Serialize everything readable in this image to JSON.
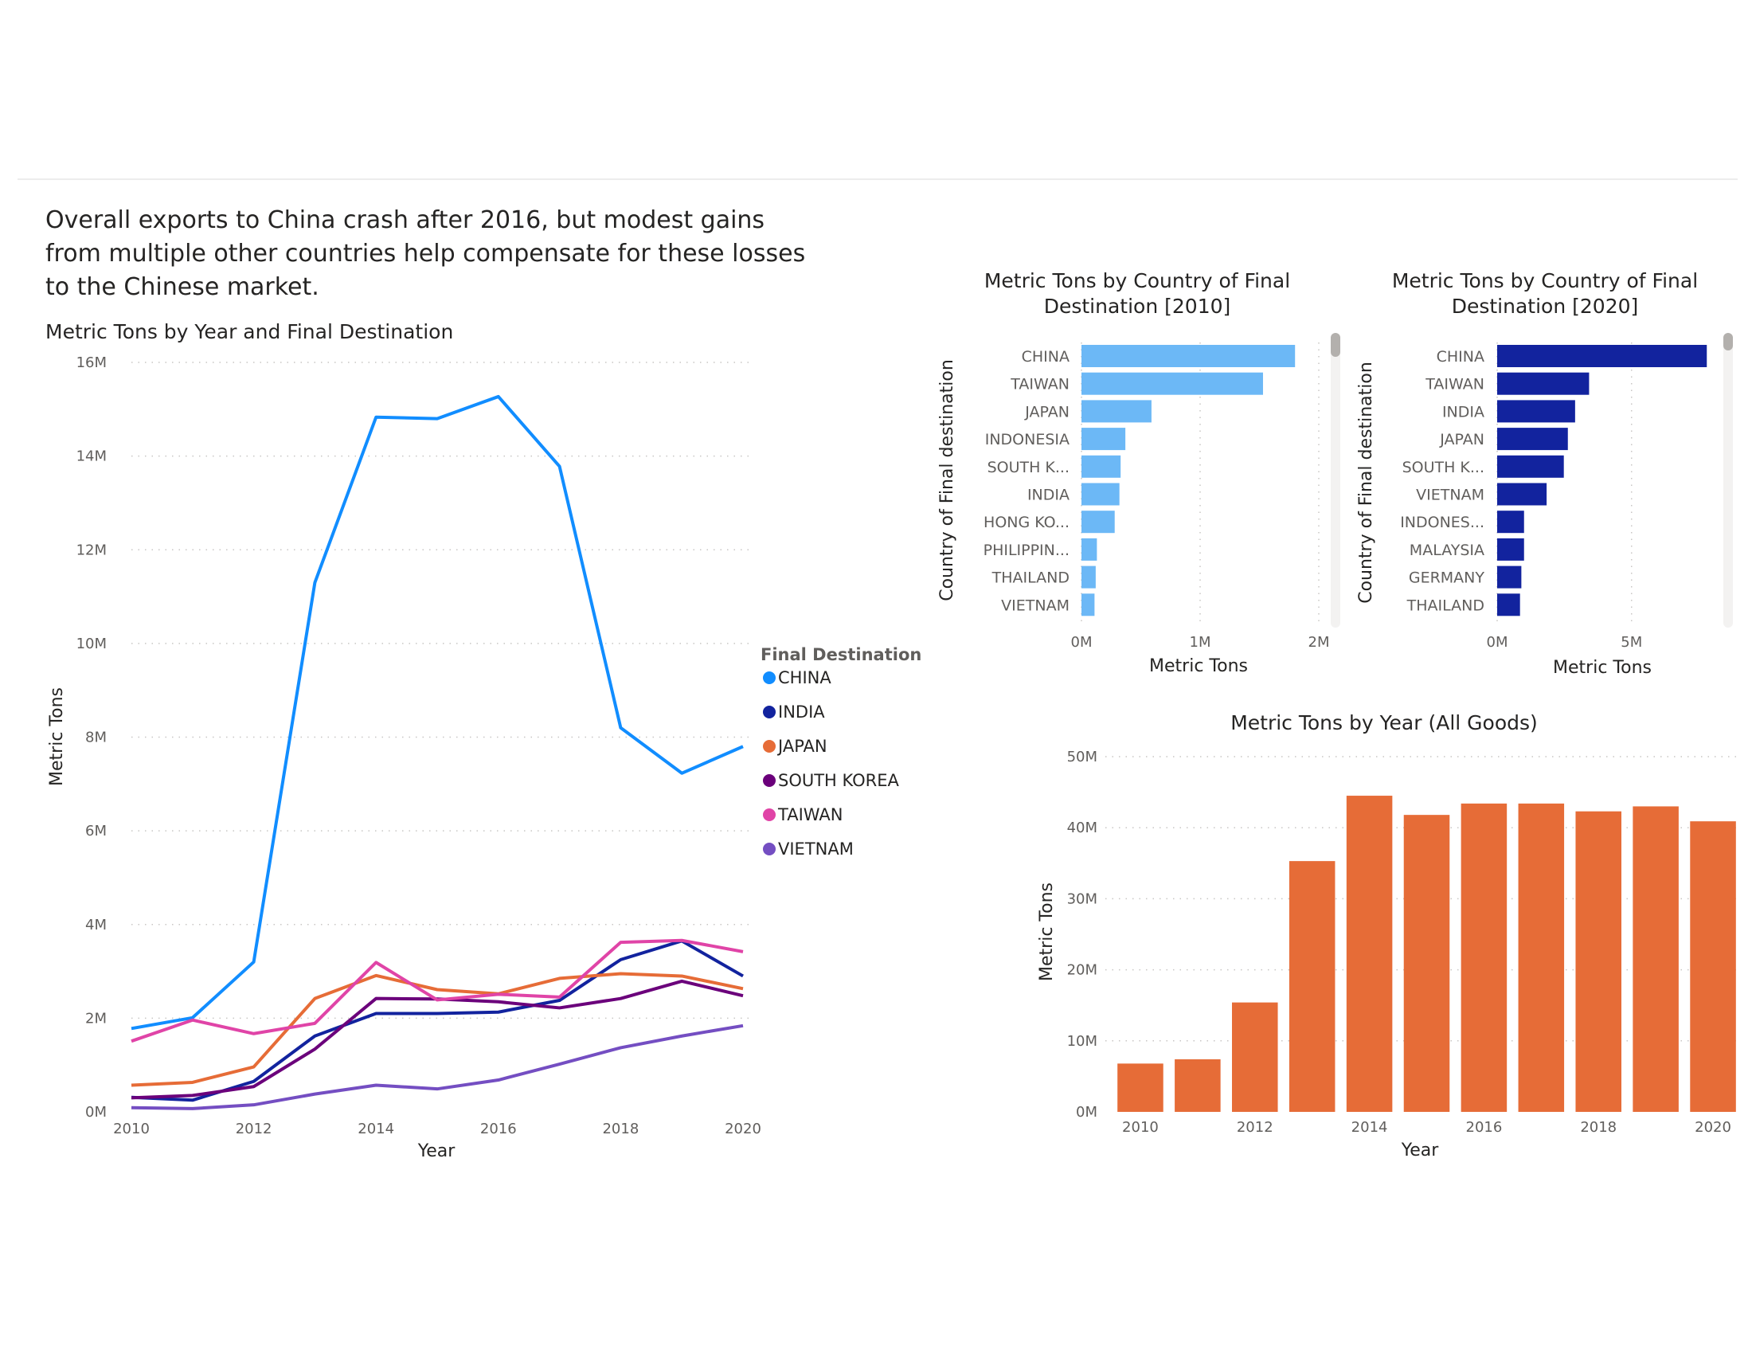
{
  "headline": "Overall exports to China crash after 2016, but modest gains from multiple other countries help compensate for these losses to the Chinese market.",
  "chart_data": [
    {
      "type": "line",
      "title": "Metric Tons by Year and Final Destination",
      "xlabel": "Year",
      "ylabel": "Metric Tons",
      "x": [
        2010,
        2011,
        2012,
        2013,
        2014,
        2015,
        2016,
        2017,
        2018,
        2019,
        2020
      ],
      "xticks": [
        "2010",
        "2012",
        "2014",
        "2016",
        "2018",
        "2020"
      ],
      "ylim": [
        0,
        16000000
      ],
      "yticks": [
        "0M",
        "2M",
        "4M",
        "6M",
        "8M",
        "10M",
        "12M",
        "14M",
        "16M"
      ],
      "grid": true,
      "legend": {
        "title": "Final Destination",
        "placement": "right"
      },
      "series": [
        {
          "name": "CHINA",
          "color": "#118dff",
          "values": [
            1780000,
            2010000,
            3200000,
            11300000,
            14830000,
            14800000,
            15270000,
            13780000,
            8200000,
            7230000,
            7800000
          ]
        },
        {
          "name": "INDIA",
          "color": "#12239e",
          "values": [
            310000,
            250000,
            650000,
            1620000,
            2100000,
            2100000,
            2130000,
            2380000,
            3250000,
            3650000,
            2900000
          ]
        },
        {
          "name": "JAPAN",
          "color": "#e66c37",
          "values": [
            570000,
            630000,
            960000,
            2420000,
            2910000,
            2610000,
            2520000,
            2850000,
            2950000,
            2900000,
            2630000
          ]
        },
        {
          "name": "SOUTH KOREA",
          "color": "#6b007b",
          "values": [
            300000,
            350000,
            540000,
            1340000,
            2420000,
            2410000,
            2350000,
            2220000,
            2420000,
            2790000,
            2480000
          ]
        },
        {
          "name": "TAIWAN",
          "color": "#e044a7",
          "values": [
            1510000,
            1960000,
            1670000,
            1890000,
            3190000,
            2390000,
            2510000,
            2450000,
            3620000,
            3660000,
            3420000
          ]
        },
        {
          "name": "VIETNAM",
          "color": "#744ec2",
          "values": [
            90000,
            70000,
            150000,
            380000,
            570000,
            490000,
            680000,
            1020000,
            1370000,
            1620000,
            1840000
          ]
        }
      ]
    },
    {
      "type": "bar",
      "orientation": "horizontal",
      "title": "Metric Tons by Country of Final Destination [2010]",
      "xlabel": "Metric Tons",
      "ylabel": "Country of Final destination",
      "color": "#6cb8f6",
      "categories": [
        "CHINA",
        "TAIWAN",
        "JAPAN",
        "INDONESIA",
        "SOUTH K...",
        "INDIA",
        "HONG KO...",
        "PHILIPPIN...",
        "THAILAND",
        "VIETNAM"
      ],
      "values": [
        1800000,
        1530000,
        590000,
        370000,
        330000,
        320000,
        280000,
        130000,
        120000,
        110000
      ],
      "xlim": [
        0,
        2000000
      ],
      "xticks": [
        "0M",
        "1M",
        "2M"
      ],
      "grid": true
    },
    {
      "type": "bar",
      "orientation": "horizontal",
      "title": "Metric Tons by Country of Final Destination [2020]",
      "xlabel": "Metric Tons",
      "ylabel": "Country of Final destination",
      "color": "#12239e",
      "categories": [
        "CHINA",
        "TAIWAN",
        "INDIA",
        "JAPAN",
        "SOUTH K...",
        "VIETNAM",
        "INDONES...",
        "MALAYSIA",
        "GERMANY",
        "THAILAND"
      ],
      "values": [
        7800000,
        3420000,
        2900000,
        2630000,
        2480000,
        1840000,
        1000000,
        1000000,
        900000,
        850000
      ],
      "xlim": [
        0,
        8000000
      ],
      "xticks": [
        "0M",
        "5M"
      ],
      "grid": true
    },
    {
      "type": "bar",
      "title": "Metric Tons by Year (All Goods)",
      "xlabel": "Year",
      "ylabel": "Metric Tons",
      "color": "#e66c37",
      "categories": [
        "2010",
        "2011",
        "2012",
        "2013",
        "2014",
        "2015",
        "2016",
        "2017",
        "2018",
        "2019",
        "2020"
      ],
      "xticks": [
        "2010",
        "2012",
        "2014",
        "2016",
        "2018",
        "2020"
      ],
      "values": [
        6800000,
        7400000,
        15400000,
        35300000,
        44500000,
        41800000,
        43400000,
        43400000,
        42300000,
        43000000,
        40900000
      ],
      "ylim": [
        0,
        50000000
      ],
      "yticks": [
        "0M",
        "10M",
        "20M",
        "30M",
        "40M",
        "50M"
      ],
      "grid": true
    }
  ]
}
